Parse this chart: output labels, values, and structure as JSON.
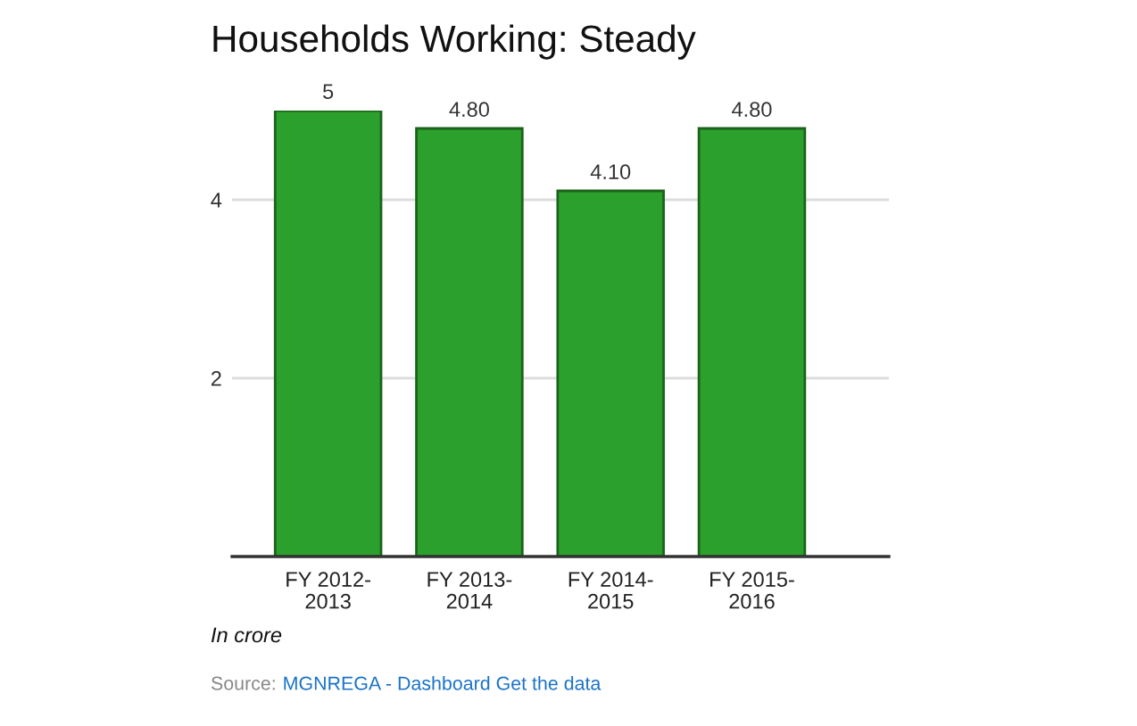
{
  "chart_data": {
    "type": "bar",
    "title": "Households Working: Steady",
    "categories": [
      "FY 2012-2013",
      "FY 2013-2014",
      "FY 2014-2015",
      "FY 2015-2016"
    ],
    "values": [
      5,
      4.8,
      4.1,
      4.8
    ],
    "value_labels": [
      "5",
      "4.80",
      "4.10",
      "4.80"
    ],
    "color": "#2ca02c",
    "ylim": [
      0,
      5
    ],
    "yticks": [
      2,
      4
    ],
    "grid": "y",
    "annotations": [
      "In crore",
      "Source: MGNREGA - Dashboard Get the data"
    ]
  }
}
